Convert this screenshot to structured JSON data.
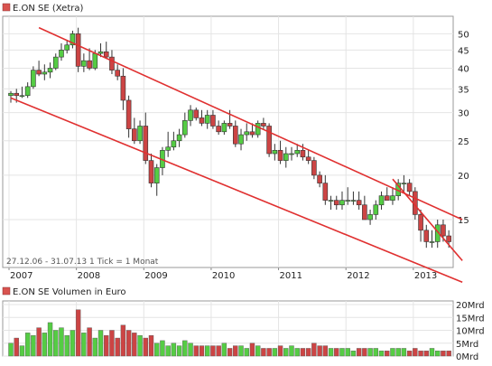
{
  "chart_data": [
    {
      "type": "candlestick",
      "legend": {
        "label": "E.ON SE (Xetra)",
        "color": "#d9534f",
        "placement": "top-left"
      },
      "y_scale": "log",
      "ylim": [
        11,
        56
      ],
      "y_ticks": [
        15,
        20,
        25,
        30,
        35,
        40,
        45,
        50
      ],
      "x_ticks": [
        "2007",
        "2008",
        "2009",
        "2010",
        "2011",
        "2012",
        "2013"
      ],
      "annotation": "27.12.06 - 31.07.13   1 Tick = 1 Monat",
      "grid": true,
      "up_color": "#55cc44",
      "down_color": "#cc4444",
      "trendline_color": "#e03030",
      "x": [
        "2007-01",
        "2007-02",
        "2007-03",
        "2007-04",
        "2007-05",
        "2007-06",
        "2007-07",
        "2007-08",
        "2007-09",
        "2007-10",
        "2007-11",
        "2007-12",
        "2008-01",
        "2008-02",
        "2008-03",
        "2008-04",
        "2008-05",
        "2008-06",
        "2008-07",
        "2008-08",
        "2008-09",
        "2008-10",
        "2008-11",
        "2008-12",
        "2009-01",
        "2009-02",
        "2009-03",
        "2009-04",
        "2009-05",
        "2009-06",
        "2009-07",
        "2009-08",
        "2009-09",
        "2009-10",
        "2009-11",
        "2009-12",
        "2010-01",
        "2010-02",
        "2010-03",
        "2010-04",
        "2010-05",
        "2010-06",
        "2010-07",
        "2010-08",
        "2010-09",
        "2010-10",
        "2010-11",
        "2010-12",
        "2011-01",
        "2011-02",
        "2011-03",
        "2011-04",
        "2011-05",
        "2011-06",
        "2011-07",
        "2011-08",
        "2011-09",
        "2011-10",
        "2011-11",
        "2011-12",
        "2012-01",
        "2012-02",
        "2012-03",
        "2012-04",
        "2012-05",
        "2012-06",
        "2012-07",
        "2012-08",
        "2012-09",
        "2012-10",
        "2012-11",
        "2012-12",
        "2013-01",
        "2013-02",
        "2013-03",
        "2013-04",
        "2013-05",
        "2013-06",
        "2013-07"
      ],
      "open": [
        33.5,
        34.0,
        33.5,
        33.5,
        35.5,
        39.5,
        38.5,
        39.0,
        40.0,
        43.0,
        45.0,
        46.5,
        50.0,
        40.5,
        42.0,
        40.0,
        44.0,
        44.5,
        43.0,
        39.5,
        38.0,
        32.5,
        27.0,
        25.0,
        27.5,
        22.0,
        19.0,
        21.0,
        23.5,
        24.0,
        25.0,
        26.0,
        28.5,
        30.5,
        29.0,
        28.0,
        29.5,
        27.5,
        26.5,
        28.0,
        27.5,
        24.5,
        26.0,
        26.5,
        26.0,
        28.0,
        27.5,
        23.0,
        23.5,
        22.0,
        23.0,
        23.0,
        23.5,
        22.5,
        22.0,
        20.0,
        19.0,
        17.0,
        17.0,
        16.5,
        17.0,
        17.0,
        17.0,
        16.5,
        15.0,
        15.5,
        16.5,
        17.5,
        17.0,
        17.5,
        19.0,
        19.0,
        18.0,
        15.5,
        14.0,
        13.0,
        13.0,
        14.5,
        13.5
      ],
      "high": [
        34.5,
        35.0,
        35.5,
        36.5,
        40.5,
        42.0,
        41.0,
        41.5,
        44.0,
        47.0,
        48.0,
        51.0,
        52.0,
        44.0,
        45.5,
        45.0,
        47.0,
        47.5,
        45.0,
        41.0,
        40.0,
        33.5,
        29.0,
        28.5,
        30.0,
        23.0,
        21.5,
        24.0,
        26.5,
        26.5,
        27.0,
        30.0,
        31.5,
        31.0,
        30.5,
        30.5,
        30.5,
        28.5,
        28.5,
        30.5,
        28.5,
        27.0,
        28.0,
        28.0,
        28.5,
        29.0,
        28.0,
        24.5,
        25.0,
        24.0,
        24.0,
        24.5,
        24.5,
        23.5,
        22.5,
        20.5,
        20.0,
        17.5,
        17.5,
        18.0,
        18.5,
        18.0,
        18.0,
        17.5,
        16.0,
        17.0,
        18.0,
        18.5,
        18.5,
        19.5,
        20.0,
        19.5,
        18.5,
        16.0,
        14.5,
        14.0,
        15.0,
        15.0,
        14.0
      ],
      "low": [
        32.0,
        32.0,
        33.0,
        33.0,
        35.0,
        38.0,
        37.0,
        37.5,
        39.5,
        42.0,
        44.0,
        45.5,
        39.0,
        39.0,
        39.5,
        39.5,
        43.0,
        42.5,
        38.5,
        37.0,
        30.5,
        25.5,
        24.5,
        24.5,
        21.5,
        18.5,
        17.5,
        20.0,
        22.5,
        23.5,
        24.0,
        25.5,
        27.5,
        28.5,
        27.5,
        27.0,
        27.0,
        26.0,
        26.0,
        27.0,
        24.0,
        23.5,
        25.0,
        25.5,
        25.5,
        27.0,
        22.5,
        22.0,
        21.5,
        21.0,
        22.0,
        22.5,
        22.0,
        21.5,
        19.5,
        18.5,
        16.5,
        16.0,
        16.0,
        16.0,
        16.5,
        16.5,
        16.0,
        15.0,
        14.5,
        15.0,
        16.0,
        17.0,
        16.5,
        17.0,
        18.0,
        17.5,
        15.0,
        13.0,
        12.5,
        12.5,
        12.5,
        13.0,
        12.5
      ],
      "close": [
        34.0,
        33.5,
        33.5,
        35.5,
        39.5,
        38.5,
        39.0,
        40.0,
        43.0,
        45.0,
        46.5,
        50.0,
        40.5,
        42.0,
        40.0,
        44.0,
        44.5,
        43.0,
        39.5,
        38.0,
        32.5,
        27.0,
        25.0,
        27.5,
        22.0,
        19.0,
        21.0,
        23.5,
        24.0,
        25.0,
        26.0,
        28.5,
        30.5,
        29.0,
        28.0,
        29.5,
        27.5,
        26.5,
        28.0,
        27.5,
        24.5,
        26.0,
        26.5,
        26.0,
        28.0,
        27.5,
        23.0,
        23.5,
        22.0,
        23.0,
        23.0,
        23.5,
        22.5,
        22.0,
        20.0,
        19.0,
        17.0,
        17.0,
        16.5,
        17.0,
        17.0,
        17.0,
        16.5,
        15.0,
        15.5,
        16.5,
        17.5,
        17.0,
        17.5,
        19.0,
        19.0,
        18.0,
        15.5,
        14.0,
        13.0,
        13.0,
        14.5,
        13.5,
        13.0
      ],
      "trendlines": [
        {
          "name": "upper",
          "from": [
            "2007-06",
            52
          ],
          "to": [
            "2013-07",
            15
          ]
        },
        {
          "name": "lower",
          "from": [
            "2007-01",
            33
          ],
          "to": [
            "2013-07",
            10
          ]
        },
        {
          "name": "short",
          "from": [
            "2012-09",
            19.5
          ],
          "to": [
            "2013-07",
            11.5
          ]
        }
      ]
    },
    {
      "type": "bar",
      "legend": {
        "label": "E.ON SE Volumen in Euro",
        "color": "#d9534f",
        "placement": "top-left"
      },
      "ylim": [
        0,
        20
      ],
      "y_ticks": [
        "0Mrd",
        "5Mrd",
        "10Mrd",
        "15Mrd",
        "20Mrd"
      ],
      "y_tick_values": [
        0,
        5,
        10,
        15,
        20
      ],
      "unit": "Mrd",
      "values": [
        5,
        7,
        4,
        9,
        8,
        11,
        9,
        13,
        10,
        11,
        8,
        10,
        18,
        9,
        11,
        7,
        10,
        8,
        10,
        7,
        12,
        10,
        9,
        8,
        7,
        8,
        5,
        6,
        4,
        5,
        4,
        6,
        5,
        4,
        4,
        4,
        4,
        4,
        5,
        3,
        4,
        4,
        3,
        5,
        4,
        3,
        3,
        3,
        4,
        3,
        4,
        3,
        3,
        3,
        5,
        4,
        4,
        3,
        3,
        3,
        3,
        2,
        3,
        3,
        3,
        3,
        2,
        2,
        3,
        3,
        3,
        2,
        3,
        2,
        2,
        3,
        2,
        2,
        2
      ]
    }
  ]
}
